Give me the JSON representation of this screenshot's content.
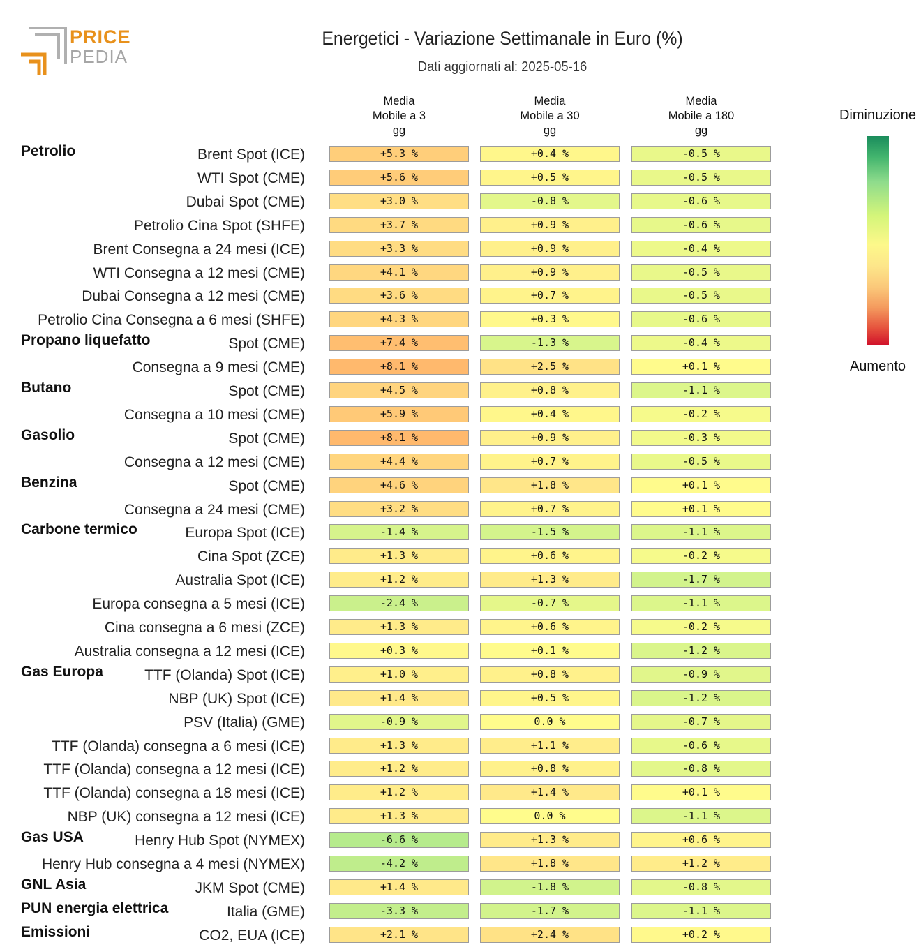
{
  "header": {
    "title": "Energetici - Variazione Settimanale in Euro (%)",
    "subtitle": "Dati aggiornati al: 2025-05-16",
    "logo_top": "PRICE",
    "logo_bottom": "PEDIA"
  },
  "chart_data": {
    "type": "table",
    "columns": [
      "Media\nMobile a 3\ngg",
      "Media\nMobile a 30\ngg",
      "Media\nMobile a 180\ngg"
    ],
    "legend": {
      "top": "Diminuzione",
      "bottom": "Aumento"
    },
    "rows": [
      {
        "group": "Petrolio",
        "label": "Brent Spot (ICE)",
        "values": [
          5.3,
          0.4,
          -0.5
        ]
      },
      {
        "group": "",
        "label": "WTI Spot (CME)",
        "values": [
          5.6,
          0.5,
          -0.5
        ]
      },
      {
        "group": "",
        "label": "Dubai Spot (CME)",
        "values": [
          3.0,
          -0.8,
          -0.6
        ]
      },
      {
        "group": "",
        "label": "Petrolio Cina Spot (SHFE)",
        "values": [
          3.7,
          0.9,
          -0.6
        ]
      },
      {
        "group": "",
        "label": "Brent Consegna a 24 mesi (ICE)",
        "values": [
          3.3,
          0.9,
          -0.4
        ]
      },
      {
        "group": "",
        "label": "WTI Consegna a 12 mesi (CME)",
        "values": [
          4.1,
          0.9,
          -0.5
        ]
      },
      {
        "group": "",
        "label": "Dubai Consegna a 12 mesi (CME)",
        "values": [
          3.6,
          0.7,
          -0.5
        ]
      },
      {
        "group": "",
        "label": "Petrolio Cina Consegna a 6 mesi (SHFE)",
        "values": [
          4.3,
          0.3,
          -0.6
        ]
      },
      {
        "group": "Propano liquefatto",
        "label": "Spot (CME)",
        "values": [
          7.4,
          -1.3,
          -0.4
        ]
      },
      {
        "group": "",
        "label": "Consegna a 9 mesi (CME)",
        "values": [
          8.1,
          2.5,
          0.1
        ]
      },
      {
        "group": "Butano",
        "label": "Spot (CME)",
        "values": [
          4.5,
          0.8,
          -1.1
        ]
      },
      {
        "group": "",
        "label": "Consegna a 10 mesi (CME)",
        "values": [
          5.9,
          0.4,
          -0.2
        ]
      },
      {
        "group": "Gasolio",
        "label": "Spot (CME)",
        "values": [
          8.1,
          0.9,
          -0.3
        ]
      },
      {
        "group": "",
        "label": "Consegna a 12 mesi (CME)",
        "values": [
          4.4,
          0.7,
          -0.5
        ]
      },
      {
        "group": "Benzina",
        "label": "Spot (CME)",
        "values": [
          4.6,
          1.8,
          0.1
        ]
      },
      {
        "group": "",
        "label": "Consegna a 24 mesi (CME)",
        "values": [
          3.2,
          0.7,
          0.1
        ]
      },
      {
        "group": "Carbone termico",
        "label": "Europa Spot (ICE)",
        "values": [
          -1.4,
          -1.5,
          -1.1
        ]
      },
      {
        "group": "",
        "label": "Cina Spot (ZCE)",
        "values": [
          1.3,
          0.6,
          -0.2
        ]
      },
      {
        "group": "",
        "label": "Australia Spot (ICE)",
        "values": [
          1.2,
          1.3,
          -1.7
        ]
      },
      {
        "group": "",
        "label": "Europa consegna a 5 mesi (ICE)",
        "values": [
          -2.4,
          -0.7,
          -1.1
        ]
      },
      {
        "group": "",
        "label": "Cina consegna a 6 mesi (ZCE)",
        "values": [
          1.3,
          0.6,
          -0.2
        ]
      },
      {
        "group": "",
        "label": "Australia consegna a 12 mesi (ICE)",
        "values": [
          0.3,
          0.1,
          -1.2
        ]
      },
      {
        "group": "Gas Europa",
        "label": "TTF (Olanda) Spot (ICE)",
        "values": [
          1.0,
          0.8,
          -0.9
        ]
      },
      {
        "group": "",
        "label": "NBP (UK) Spot (ICE)",
        "values": [
          1.4,
          0.5,
          -1.2
        ]
      },
      {
        "group": "",
        "label": "PSV (Italia) (GME)",
        "values": [
          -0.9,
          0.0,
          -0.7
        ]
      },
      {
        "group": "",
        "label": "TTF (Olanda) consegna a 6 mesi (ICE)",
        "values": [
          1.3,
          1.1,
          -0.6
        ]
      },
      {
        "group": "",
        "label": "TTF (Olanda) consegna a 12 mesi (ICE)",
        "values": [
          1.2,
          0.8,
          -0.8
        ]
      },
      {
        "group": "",
        "label": "TTF (Olanda) consegna a 18 mesi (ICE)",
        "values": [
          1.2,
          1.4,
          0.1
        ]
      },
      {
        "group": "",
        "label": "NBP (UK) consegna a 12 mesi (ICE)",
        "values": [
          1.3,
          0.0,
          -1.1
        ]
      },
      {
        "group": "Gas USA",
        "label": "Henry Hub Spot (NYMEX)",
        "values": [
          -6.6,
          1.3,
          0.6
        ]
      },
      {
        "group": "",
        "label": "Henry Hub consegna a 4 mesi (NYMEX)",
        "values": [
          -4.2,
          1.8,
          1.2
        ]
      },
      {
        "group": "GNL Asia",
        "label": "JKM Spot (CME)",
        "values": [
          1.4,
          -1.8,
          -0.8
        ]
      },
      {
        "group": "PUN energia elettrica",
        "label": "Italia (GME)",
        "values": [
          -3.3,
          -1.7,
          -1.1
        ]
      },
      {
        "group": "Emissioni",
        "label": "CO2, EUA (ICE)",
        "values": [
          2.1,
          2.4,
          0.2
        ]
      }
    ]
  }
}
